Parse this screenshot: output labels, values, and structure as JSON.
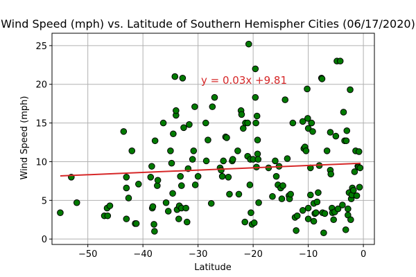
{
  "chart_data": {
    "type": "scatter",
    "title": "Wind Speed (mph) vs. Latitude of Southern Hemispher Cities (06/17/2020)",
    "xlabel": "Latitude",
    "ylabel": "Wind Speed (mph)",
    "xlim": [
      -56.5,
      2
    ],
    "ylim": [
      -0.7,
      26.6
    ],
    "xticks": [
      -50,
      -40,
      -30,
      -20,
      -10,
      0
    ],
    "yticks": [
      0,
      5,
      10,
      15,
      20,
      25
    ],
    "grid": true,
    "marker_color": "#007a00",
    "marker_edge": "#000000",
    "regression": {
      "equation": "y = 0.03x +9.81",
      "slope": 0.03,
      "intercept": 9.81,
      "x_start": -55,
      "x_end": -0.5,
      "color": "#d62728"
    },
    "points": [
      [
        -55,
        3.4
      ],
      [
        -53,
        8
      ],
      [
        -52,
        4.7
      ],
      [
        -47,
        3
      ],
      [
        -46.5,
        4
      ],
      [
        -46.4,
        3
      ],
      [
        -46,
        4.3
      ],
      [
        -43.5,
        13.9
      ],
      [
        -43,
        8
      ],
      [
        -43,
        6.6
      ],
      [
        -43,
        2.6
      ],
      [
        -42.6,
        5.3
      ],
      [
        -42,
        11.4
      ],
      [
        -41.4,
        2
      ],
      [
        -41.2,
        2
      ],
      [
        -40.8,
        7.1
      ],
      [
        -38.6,
        8
      ],
      [
        -38.4,
        9.4
      ],
      [
        -38.3,
        4
      ],
      [
        -38.2,
        4.2
      ],
      [
        -38,
        1.9
      ],
      [
        -37.9,
        1
      ],
      [
        -37.8,
        12.7
      ],
      [
        -37.4,
        6.9
      ],
      [
        -37.3,
        7.6
      ],
      [
        -36.3,
        15
      ],
      [
        -35.8,
        4.7
      ],
      [
        -35.4,
        3.6
      ],
      [
        -35,
        11.4
      ],
      [
        -34.8,
        9.8
      ],
      [
        -34.6,
        5.9
      ],
      [
        -34.5,
        13.6
      ],
      [
        -34.2,
        21
      ],
      [
        -34,
        16
      ],
      [
        -34,
        16.6
      ],
      [
        -33.8,
        3.8
      ],
      [
        -33.5,
        2.6
      ],
      [
        -33.4,
        4.3
      ],
      [
        -33.2,
        8.1
      ],
      [
        -33,
        6.9
      ],
      [
        -33,
        4
      ],
      [
        -32.8,
        20.8
      ],
      [
        -32.6,
        14.4
      ],
      [
        -32.2,
        4
      ],
      [
        -32,
        2.2
      ],
      [
        -31.8,
        9.1
      ],
      [
        -31.6,
        14.8
      ],
      [
        -31,
        10.3
      ],
      [
        -30.8,
        11.4
      ],
      [
        -30.6,
        17.1
      ],
      [
        -30.5,
        7
      ],
      [
        -30,
        8.1
      ],
      [
        -28.6,
        15
      ],
      [
        -28.5,
        10.1
      ],
      [
        -28.2,
        12.8
      ],
      [
        -27.6,
        4.6
      ],
      [
        -27.4,
        17.1
      ],
      [
        -27,
        18.3
      ],
      [
        -26,
        9.2
      ],
      [
        -25.8,
        8.9
      ],
      [
        -25.6,
        8.1
      ],
      [
        -25.4,
        10.1
      ],
      [
        -25,
        13.2
      ],
      [
        -24.8,
        13.1
      ],
      [
        -24.5,
        8
      ],
      [
        -24.3,
        5.8
      ],
      [
        -23.8,
        10.1
      ],
      [
        -23.7,
        10.3
      ],
      [
        -22.8,
        11.4
      ],
      [
        -22.6,
        5.8
      ],
      [
        -22.2,
        16.6
      ],
      [
        -22.1,
        16.1
      ],
      [
        -21.8,
        14.3
      ],
      [
        -21.5,
        2.2
      ],
      [
        -21.4,
        15
      ],
      [
        -21,
        10.7
      ],
      [
        -21,
        15
      ],
      [
        -20.8,
        25.2
      ],
      [
        -20.6,
        7
      ],
      [
        -20.5,
        10.3
      ],
      [
        -20.4,
        3.4
      ],
      [
        -20.2,
        1.9
      ],
      [
        -20,
        10.3
      ],
      [
        -19.8,
        2.1
      ],
      [
        -19.6,
        22
      ],
      [
        -19.6,
        18.3
      ],
      [
        -19.5,
        15
      ],
      [
        -19.4,
        9.3
      ],
      [
        -19.3,
        15.9
      ],
      [
        -19.2,
        12.8
      ],
      [
        -19.2,
        11
      ],
      [
        -19.1,
        10.3
      ],
      [
        -19,
        4.7
      ],
      [
        -17.2,
        9.2
      ],
      [
        -16.5,
        5.5
      ],
      [
        -16,
        10.1
      ],
      [
        -15.8,
        8.1
      ],
      [
        -15.5,
        7
      ],
      [
        -15.3,
        9.4
      ],
      [
        -15,
        6.6
      ],
      [
        -14.8,
        5.2
      ],
      [
        -14.6,
        6.9
      ],
      [
        -14.2,
        18
      ],
      [
        -13.8,
        10.4
      ],
      [
        -13.5,
        5.6
      ],
      [
        -13.4,
        5.2
      ],
      [
        -13.2,
        5.8
      ],
      [
        -12.8,
        15
      ],
      [
        -12.4,
        2.8
      ],
      [
        -12.2,
        1.1
      ],
      [
        -12,
        3
      ],
      [
        -11,
        15.2
      ],
      [
        -11,
        3.7
      ],
      [
        -10.8,
        11.7
      ],
      [
        -10.6,
        11.9
      ],
      [
        -10.4,
        11.4
      ],
      [
        -10.2,
        19.4
      ],
      [
        -10.1,
        15.6
      ],
      [
        -10,
        14.3
      ],
      [
        -10,
        4
      ],
      [
        -10,
        2.6
      ],
      [
        -9.6,
        5.7
      ],
      [
        -9.6,
        9.2
      ],
      [
        -9.4,
        15
      ],
      [
        -9.2,
        13.9
      ],
      [
        -9,
        4.6
      ],
      [
        -9,
        2.3
      ],
      [
        -8.8,
        3.3
      ],
      [
        -8.6,
        3.4
      ],
      [
        -8.4,
        4.8
      ],
      [
        -8.2,
        6
      ],
      [
        -8,
        9.5
      ],
      [
        -7.6,
        20.8
      ],
      [
        -7.5,
        20.7
      ],
      [
        -7.4,
        3.4
      ],
      [
        -7.2,
        0.8
      ],
      [
        -7,
        3.3
      ],
      [
        -6.6,
        11.4
      ],
      [
        -6,
        13.8
      ],
      [
        -6,
        8.9
      ],
      [
        -5.9,
        8.4
      ],
      [
        -5.7,
        4
      ],
      [
        -5.6,
        3.4
      ],
      [
        -5.4,
        2.5
      ],
      [
        -5.2,
        3.5
      ],
      [
        -5,
        13.3
      ],
      [
        -4.8,
        23
      ],
      [
        -4.6,
        3.9
      ],
      [
        -4.2,
        23
      ],
      [
        -3.8,
        4.4
      ],
      [
        -3.6,
        16.4
      ],
      [
        -3.4,
        12.7
      ],
      [
        -3.2,
        1.2
      ],
      [
        -3.1,
        12.7
      ],
      [
        -3,
        14
      ],
      [
        -2.8,
        3.1
      ],
      [
        -2.8,
        3.9
      ],
      [
        -2.6,
        6
      ],
      [
        -2.4,
        19.3
      ],
      [
        -2.3,
        2.5
      ],
      [
        -2.2,
        5.2
      ],
      [
        -2.1,
        5.7
      ],
      [
        -2,
        6.6
      ],
      [
        -1.8,
        6.3
      ],
      [
        -1.6,
        8.7
      ],
      [
        -1.4,
        11.4
      ],
      [
        -1.2,
        5.6
      ],
      [
        -1,
        9.4
      ],
      [
        -0.9,
        9.3
      ],
      [
        -0.8,
        11.3
      ],
      [
        -0.7,
        6.7
      ],
      [
        -0.6,
        9.2
      ]
    ]
  }
}
